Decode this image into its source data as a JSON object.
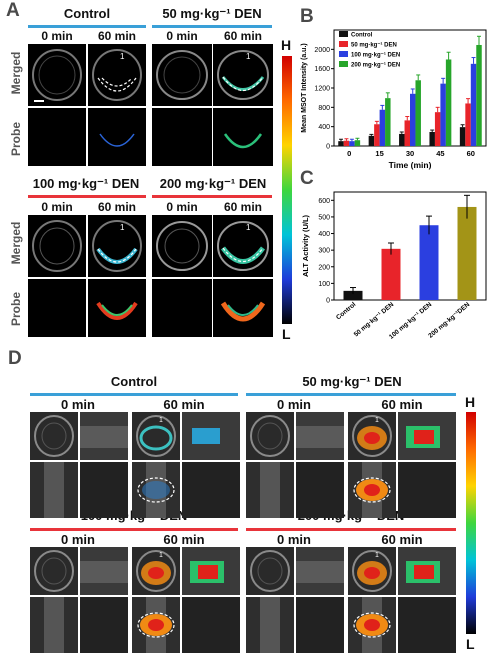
{
  "panel_letters": {
    "a": "A",
    "b": "B",
    "c": "C",
    "d": "D"
  },
  "panelA": {
    "groups": [
      "Control",
      "50 mg·kg⁻¹ DEN",
      "100 mg·kg⁻¹ DEN",
      "200 mg·kg⁻¹ DEN"
    ],
    "time_labels": [
      "0 min",
      "60 min"
    ],
    "row_labels": [
      "Merged",
      "Probe"
    ],
    "roi_label": "1"
  },
  "panelD": {
    "groups": [
      "Control",
      "50 mg·kg⁻¹ DEN",
      "100 mg·kg⁻¹ DEN",
      "200 mg·kg⁻¹ DEN"
    ],
    "time_labels": [
      "0 min",
      "60 min"
    ],
    "roi_label": "1"
  },
  "colorbar": {
    "high": "H",
    "low": "L"
  },
  "chart_data": [
    {
      "type": "bar",
      "ylabel": "Mean MSOT Intensity (a.u.)",
      "xlabel": "Time (min)",
      "categories": [
        "0",
        "15",
        "30",
        "45",
        "60"
      ],
      "ylim": [
        0,
        2400
      ],
      "yticks": [
        "0",
        "400",
        "800",
        "1200",
        "1600",
        "2000"
      ],
      "series": [
        {
          "name": "Control",
          "color": "#111111",
          "values": [
            100,
            210,
            250,
            290,
            390
          ]
        },
        {
          "name": "50 mg·kg⁻¹ DEN",
          "color": "#e8242a",
          "values": [
            110,
            450,
            530,
            700,
            880
          ]
        },
        {
          "name": "100 mg·kg⁻¹ DEN",
          "color": "#2b3fe0",
          "values": [
            100,
            750,
            1080,
            1290,
            1700
          ]
        },
        {
          "name": "200 mg·kg⁻¹ DEN",
          "color": "#27a52a",
          "values": [
            120,
            990,
            1360,
            1790,
            2090
          ]
        }
      ],
      "errors": [
        [
          40,
          30,
          40,
          40,
          50
        ],
        [
          40,
          60,
          80,
          100,
          100
        ],
        [
          40,
          90,
          100,
          110,
          130
        ],
        [
          40,
          110,
          110,
          150,
          180
        ]
      ]
    },
    {
      "type": "bar",
      "ylabel": "ALT Activity (U/L)",
      "categories": [
        "Control",
        "50 mg·kg⁻¹ DEN",
        "100 mg·kg⁻¹ DEN",
        "200 mg·kg⁻¹DEN"
      ],
      "values": [
        55,
        308,
        450,
        560
      ],
      "errors": [
        20,
        35,
        55,
        70
      ],
      "colors": [
        "#111111",
        "#e8242a",
        "#2b3fe0",
        "#a39417"
      ],
      "ylim": [
        0,
        650
      ],
      "yticks": [
        "0",
        "100",
        "200",
        "300",
        "400",
        "500",
        "600"
      ]
    }
  ]
}
